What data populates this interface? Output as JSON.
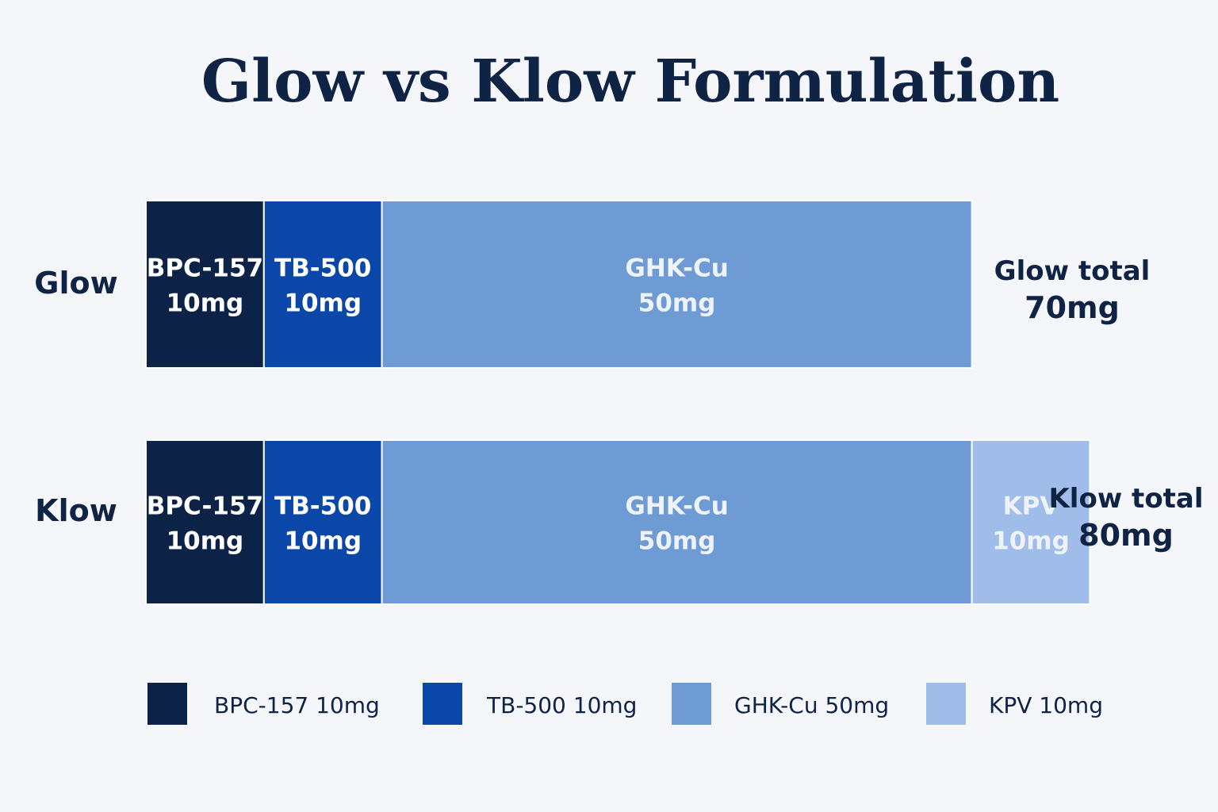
{
  "title": "Glow vs Klow Formulation",
  "colors": {
    "background": "#f4f6fa",
    "text": "#0f2345",
    "BPC-157": "#0c2347",
    "TB-500": "#0a47a8",
    "GHK-Cu": "#6e9bd3",
    "KPV": "#9fbde8"
  },
  "chart_data": {
    "type": "bar",
    "orientation": "horizontal",
    "stacked": true,
    "unit": "mg",
    "title": "Glow vs Klow Formulation",
    "categories": [
      "Glow",
      "Klow"
    ],
    "series": [
      {
        "name": "BPC-157",
        "values": [
          10,
          10
        ],
        "segment_labels": [
          "BPC-157",
          "BPC-157"
        ],
        "value_labels": [
          "10mg",
          "10mg"
        ]
      },
      {
        "name": "TB-500",
        "values": [
          10,
          10
        ],
        "segment_labels": [
          "TB-500",
          "TB-500"
        ],
        "value_labels": [
          "10mg",
          "10mg"
        ]
      },
      {
        "name": "GHK-Cu",
        "values": [
          50,
          50
        ],
        "segment_labels": [
          "GHK-Cu",
          "GHK-Cu"
        ],
        "value_labels": [
          "50mg",
          "50mg"
        ]
      },
      {
        "name": "KPV",
        "values": [
          0,
          10
        ],
        "segment_labels": [
          "",
          "KPV"
        ],
        "value_labels": [
          "",
          "10mg"
        ]
      }
    ],
    "totals": [
      {
        "label": "Glow total",
        "value": 70,
        "value_label": "70mg"
      },
      {
        "label": "Klow total",
        "value": 80,
        "value_label": "80mg"
      }
    ],
    "legend": {
      "position": "bottom",
      "entries": [
        {
          "series": "BPC-157",
          "label": "BPC-157 10mg"
        },
        {
          "series": "TB-500",
          "label": "TB-500 10mg"
        },
        {
          "series": "GHK-Cu",
          "label": "GHK-Cu 50mg"
        },
        {
          "series": "KPV",
          "label": "KPV 10mg"
        }
      ]
    },
    "grid": false,
    "axes_visible": false
  }
}
